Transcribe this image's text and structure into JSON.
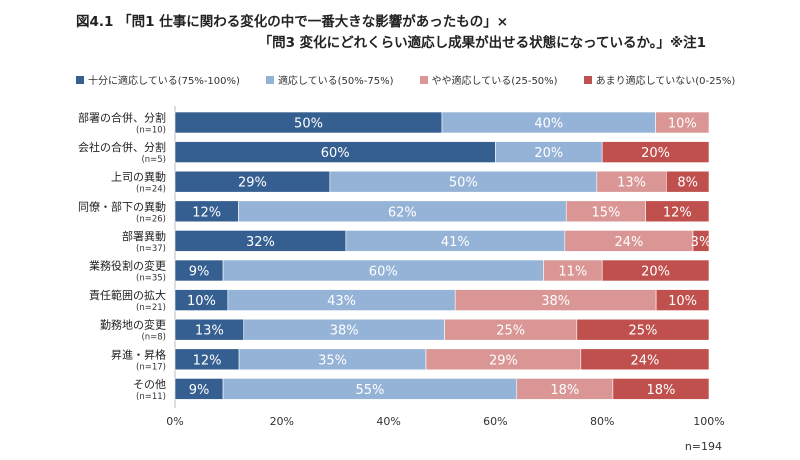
{
  "title_line1": "図4.1 「問1 仕事に関わる変化の中で一番大きな影響があったもの」×",
  "title_line2": "「問3 変化にどれくらい適応し成果が出せる状態になっているか。」※注1",
  "footnote": "n=194",
  "chart_data": {
    "type": "bar",
    "orientation": "horizontal",
    "stacked": "100%",
    "legend_position": "top",
    "grid": false,
    "xlim": [
      0,
      100
    ],
    "x_ticks": [
      "0%",
      "20%",
      "40%",
      "60%",
      "80%",
      "100%"
    ],
    "categories": [
      "部署の合併、分割",
      "会社の合併、分割",
      "上司の異動",
      "同僚・部下の異動",
      "部署異動",
      "業務役割の変更",
      "責任範囲の拡大",
      "勤務地の変更",
      "昇進・昇格",
      "その他"
    ],
    "category_n": [
      "(n=10)",
      "(n=5)",
      "(n=24)",
      "(n=26)",
      "(n=37)",
      "(n=35)",
      "(n=21)",
      "(n=8)",
      "(n=17)",
      "(n=11)"
    ],
    "series": [
      {
        "name": "十分に適応している(75%-100%)",
        "color": "#365f91",
        "values": [
          50,
          60,
          29,
          12,
          32,
          9,
          10,
          13,
          12,
          9
        ]
      },
      {
        "name": "適応している(50%-75%)",
        "color": "#95b3d7",
        "values": [
          40,
          20,
          50,
          62,
          41,
          60,
          43,
          38,
          35,
          55
        ]
      },
      {
        "name": "やや適応している(25-50%)",
        "color": "#d99694",
        "values": [
          10,
          0,
          13,
          15,
          24,
          11,
          38,
          25,
          29,
          18
        ]
      },
      {
        "name": "あまり適応していない(0-25%)",
        "color": "#c0504d",
        "values": [
          0,
          20,
          8,
          12,
          3,
          20,
          10,
          25,
          24,
          18
        ]
      }
    ]
  }
}
